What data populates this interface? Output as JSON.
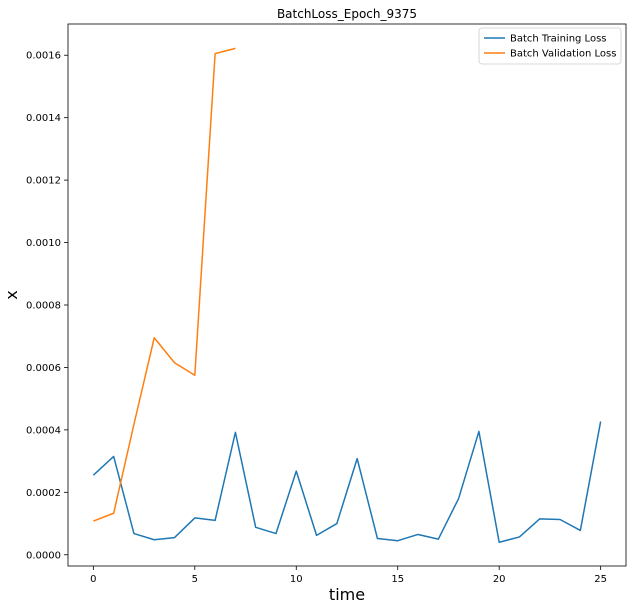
{
  "chart_data": {
    "type": "line",
    "title": "BatchLoss_Epoch_9375",
    "xlabel": "time",
    "ylabel": "x",
    "xlim": [
      -1.25,
      26.25
    ],
    "ylim": [
      -3.6e-05,
      0.0017
    ],
    "xticks": [
      0,
      5,
      10,
      15,
      20,
      25
    ],
    "xtick_labels": [
      "0",
      "5",
      "10",
      "15",
      "20",
      "25"
    ],
    "yticks": [
      0,
      0.0002,
      0.0004,
      0.0006,
      0.0008,
      0.001,
      0.0012,
      0.0014,
      0.0016
    ],
    "ytick_labels": [
      "0.0000",
      "0.0002",
      "0.0004",
      "0.0006",
      "0.0008",
      "0.0010",
      "0.0012",
      "0.0014",
      "0.0016"
    ],
    "grid": false,
    "legend_position": "top-right",
    "series": [
      {
        "name": "Batch Training Loss",
        "color": "#1f77b4",
        "x": [
          0,
          1,
          2,
          3,
          4,
          5,
          6,
          7,
          8,
          9,
          10,
          11,
          12,
          13,
          14,
          15,
          16,
          17,
          18,
          19,
          20,
          21,
          22,
          23,
          24,
          25
        ],
        "y": [
          0.000255,
          0.000315,
          6.8e-05,
          4.8e-05,
          5.5e-05,
          0.000118,
          0.00011,
          0.000392,
          8.8e-05,
          6.8e-05,
          0.000268,
          6.2e-05,
          0.0001,
          0.000308,
          5.2e-05,
          4.5e-05,
          6.5e-05,
          5e-05,
          0.00018,
          0.000395,
          4e-05,
          5.7e-05,
          0.000115,
          0.000113,
          7.8e-05,
          0.000427
        ]
      },
      {
        "name": "Batch Validation Loss",
        "color": "#ff7f0e",
        "x": [
          0,
          1,
          2,
          3,
          4,
          5,
          6,
          7
        ],
        "y": [
          0.000108,
          0.000133,
          0.000418,
          0.000695,
          0.000615,
          0.000575,
          0.001605,
          0.001622
        ]
      }
    ]
  }
}
